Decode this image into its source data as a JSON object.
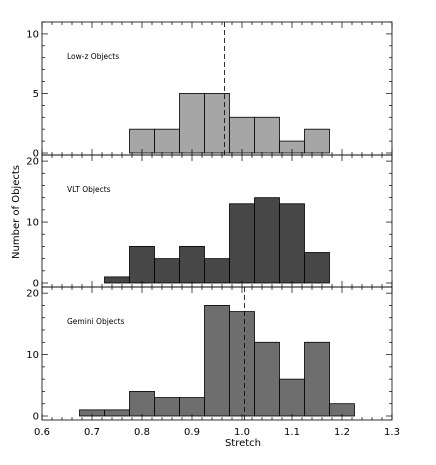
{
  "chart_data": {
    "type": "bar",
    "xlabel": "Stretch",
    "ylabel": "Number of Objects",
    "xlim": [
      0.6,
      1.3
    ],
    "x_ticks": [
      "0.6",
      "0.7",
      "0.8",
      "0.9",
      "1.0",
      "1.1",
      "1.2",
      "1.3"
    ],
    "bin_width": 0.05,
    "panels": [
      {
        "label": "Low-z Objects",
        "ylim": [
          0,
          11
        ],
        "y_ticks": [
          "0",
          "5",
          "10"
        ],
        "bar_color": "#a6a6a6",
        "bin_starts": [
          0.775,
          0.825,
          0.875,
          0.925,
          0.975,
          1.025,
          1.075,
          1.125
        ],
        "values": [
          2,
          2,
          5,
          5,
          3,
          3,
          1,
          2
        ],
        "dashed_line_x": 0.965
      },
      {
        "label": "VLT Objects",
        "ylim": [
          0,
          21
        ],
        "y_ticks": [
          "0",
          "10",
          "20"
        ],
        "bar_color": "#474747",
        "bin_starts": [
          0.725,
          0.775,
          0.825,
          0.875,
          0.925,
          0.975,
          1.025,
          1.075,
          1.125
        ],
        "values": [
          1,
          6,
          4,
          6,
          4,
          13,
          14,
          13,
          5
        ],
        "dashed_line_x": null
      },
      {
        "label": "Gemini Objects",
        "ylim": [
          0,
          21
        ],
        "y_ticks": [
          "0",
          "10",
          "20"
        ],
        "bar_color": "#6e6e6e",
        "bin_starts": [
          0.675,
          0.725,
          0.775,
          0.825,
          0.875,
          0.925,
          0.975,
          1.025,
          1.075,
          1.125,
          1.175
        ],
        "values": [
          1,
          1,
          4,
          3,
          3,
          18,
          17,
          12,
          6,
          12,
          2
        ],
        "dashed_line_x": 1.005
      }
    ]
  }
}
